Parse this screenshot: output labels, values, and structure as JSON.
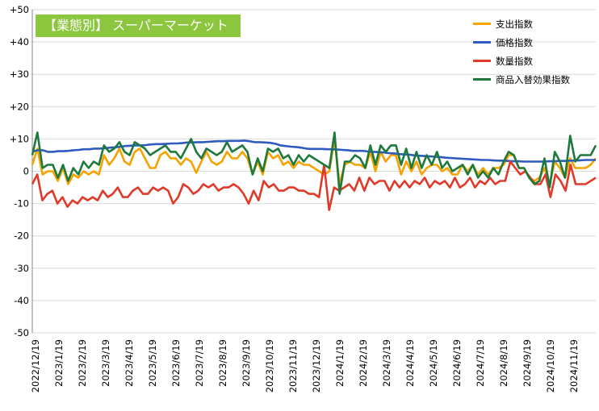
{
  "chart_data": {
    "type": "line",
    "title": "【業態別】 スーパーマーケット",
    "ylim": [
      -50,
      50
    ],
    "yticks": [
      "+50",
      "+40",
      "+30",
      "+20",
      "+10",
      "0",
      "-10",
      "-20",
      "-30",
      "-40",
      "-50"
    ],
    "x_tick_labels": [
      "2022/12/19",
      "2023/1/19",
      "2023/2/19",
      "2023/3/19",
      "2023/4/19",
      "2023/5/19",
      "2023/6/19",
      "2023/7/19",
      "2023/8/19",
      "2023/9/19",
      "2023/10/19",
      "2023/11/19",
      "2023/12/19",
      "2024/1/19",
      "2024/2/19",
      "2024/3/19",
      "2024/4/19",
      "2024/5/19",
      "2024/6/19",
      "2024/7/19",
      "2024/8/19",
      "2024/9/19",
      "2024/10/19",
      "2024/11/19"
    ],
    "legend_position": "top-right",
    "grid": true,
    "series": [
      {
        "name": "支出指数",
        "color": "#f4a300",
        "values": [
          2,
          7,
          -1,
          0,
          0,
          -3,
          1,
          -4,
          -1,
          -2,
          0,
          -1,
          0,
          -1,
          5,
          2,
          4,
          7,
          3,
          2,
          6,
          7,
          4,
          1,
          1,
          5,
          6,
          4,
          4,
          2,
          4,
          3,
          -0.5,
          3,
          6,
          3,
          2,
          3,
          6,
          4,
          4,
          6,
          4,
          -1,
          3,
          -1,
          6,
          4,
          5,
          2,
          3,
          1,
          3,
          2,
          2,
          1,
          0,
          -1,
          0,
          10,
          -4,
          2,
          3,
          2,
          2,
          1,
          6,
          0,
          6,
          3,
          5,
          5,
          -1,
          3,
          0,
          3,
          -1,
          1,
          2,
          2,
          0,
          1,
          -1,
          -1,
          2,
          0,
          2,
          -1,
          1,
          -1,
          1,
          1,
          2,
          5,
          5,
          1,
          1,
          -2,
          -3,
          -2,
          1,
          -4,
          3,
          1,
          -2,
          4,
          1,
          1,
          1,
          2,
          4
        ]
      },
      {
        "name": "価格指数",
        "color": "#2e5bbf",
        "values": [
          6,
          6.5,
          6.5,
          6,
          6,
          6.2,
          6.2,
          6.3,
          6.5,
          6.6,
          6.8,
          6.8,
          7,
          7,
          7.1,
          7.3,
          7.4,
          7.6,
          7.8,
          7.9,
          8,
          8,
          8.1,
          8.3,
          8.4,
          8.4,
          8.5,
          8.6,
          8.6,
          8.7,
          8.9,
          8.9,
          9,
          9,
          9.1,
          9.2,
          9.3,
          9.3,
          9.4,
          9.4,
          9.4,
          9.5,
          9.3,
          9,
          9,
          8.9,
          8.8,
          8.5,
          8,
          7.8,
          7.6,
          7.5,
          7.3,
          7,
          6.9,
          6.9,
          6.9,
          6.8,
          6.8,
          6.7,
          6.6,
          6.5,
          6.3,
          6.3,
          6.3,
          6.1,
          6,
          5.9,
          5.8,
          5.6,
          5.5,
          5.3,
          5.2,
          5.1,
          4.9,
          4.8,
          4.7,
          4.6,
          4.5,
          4.4,
          4.2,
          4.1,
          4,
          3.9,
          3.8,
          3.7,
          3.6,
          3.5,
          3.5,
          3.4,
          3.3,
          3.3,
          3.2,
          3.1,
          3.1,
          3,
          3,
          3,
          3,
          3,
          3.1,
          3.1,
          3.2,
          3.2,
          3.3,
          3.3,
          3.4,
          3.5,
          3.5,
          3.5
        ]
      },
      {
        "name": "数量指数",
        "color": "#e03a2a",
        "values": [
          -4,
          -1,
          -9,
          -7,
          -6,
          -10,
          -8,
          -11,
          -9,
          -10,
          -8,
          -9,
          -8,
          -9,
          -6,
          -8,
          -7,
          -5,
          -8,
          -8,
          -6,
          -5,
          -7,
          -7,
          -5,
          -6,
          -5,
          -6,
          -10,
          -8,
          -4,
          -5,
          -7,
          -6,
          -4,
          -5,
          -4,
          -6,
          -5,
          -5,
          -4,
          -5,
          -7,
          -10,
          -6,
          -9,
          -3,
          -5,
          -4,
          -6,
          -6,
          -5,
          -5,
          -6,
          -6,
          -7,
          -7,
          -8,
          2,
          -12,
          -5,
          -6,
          -5,
          -4,
          -6,
          -2,
          -6,
          -2,
          -4,
          -3,
          -3,
          -6,
          -3,
          -5,
          -3,
          -5,
          -3,
          -4,
          -2,
          -5,
          -3,
          -4,
          -3,
          -5,
          -2,
          -5,
          -4,
          -2,
          -5,
          -3,
          -4,
          -2,
          -4,
          -3,
          -3,
          3,
          1,
          -1,
          0,
          -2,
          -4,
          -4,
          -1,
          -8,
          -1,
          -3,
          -6,
          2,
          -4,
          -4,
          -4,
          -3,
          -2
        ]
      },
      {
        "name": "商品入替効果指数",
        "color": "#1e7a3c",
        "values": [
          5,
          12,
          1,
          2,
          2,
          -2,
          2,
          -3,
          1,
          -1,
          3,
          1,
          3,
          2,
          8,
          6,
          7,
          9,
          6,
          5,
          9,
          8,
          7,
          5,
          6,
          7,
          8,
          6,
          6,
          4,
          7,
          10,
          6,
          4,
          7,
          6,
          5,
          6,
          9,
          6,
          7,
          8,
          6,
          -1,
          4,
          0,
          7,
          6,
          7,
          4,
          5,
          2,
          5,
          3,
          5,
          4,
          3,
          2,
          1,
          12,
          -7,
          3,
          3,
          5,
          4,
          1,
          8,
          2,
          8,
          6,
          8,
          8,
          2,
          7,
          1,
          6,
          1,
          5,
          2,
          6,
          1,
          3,
          0,
          1,
          2,
          -1,
          2,
          -2,
          0,
          -2,
          1,
          -1,
          3,
          6,
          5,
          1,
          1,
          -2,
          -4,
          -3,
          4,
          -5,
          6,
          3,
          -2,
          11,
          3,
          5,
          5,
          5,
          8
        ]
      }
    ]
  }
}
